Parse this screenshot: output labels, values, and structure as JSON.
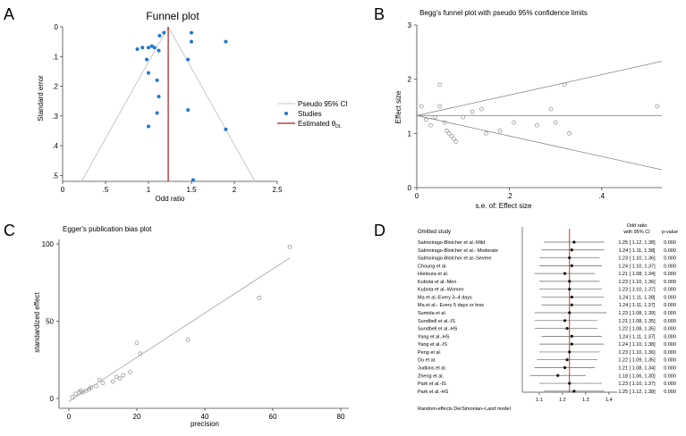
{
  "panelA": {
    "letter": "A",
    "chart_data": {
      "type": "scatter",
      "title": "Funnel plot",
      "xlabel": "Odd ratio",
      "ylabel": "Standard error",
      "xlim": [
        0,
        2.5
      ],
      "ylim": [
        0,
        0.52
      ],
      "y_inverted": true,
      "x_ticks": [
        "0",
        ".5",
        "1",
        "1.5",
        "2",
        "2.5"
      ],
      "y_ticks": [
        "0",
        ".1",
        ".2",
        ".3",
        ".4",
        ".5"
      ],
      "pooled_estimate": 1.23,
      "ci_lines": {
        "apex": [
          1.23,
          0
        ],
        "bottom_left": [
          0.22,
          0.52
        ],
        "bottom_right": [
          2.24,
          0.52
        ]
      },
      "legend": [
        "Pseudo 95% CI",
        "Studies",
        "Estimated θ"
      ],
      "legend_subscript": "DL",
      "points": [
        {
          "x": 1.18,
          "y": 0.02
        },
        {
          "x": 1.13,
          "y": 0.03
        },
        {
          "x": 1.5,
          "y": 0.02
        },
        {
          "x": 1.5,
          "y": 0.05
        },
        {
          "x": 1.9,
          "y": 0.05
        },
        {
          "x": 1.07,
          "y": 0.07
        },
        {
          "x": 0.87,
          "y": 0.075
        },
        {
          "x": 0.93,
          "y": 0.07
        },
        {
          "x": 1.0,
          "y": 0.07
        },
        {
          "x": 1.04,
          "y": 0.065
        },
        {
          "x": 1.12,
          "y": 0.08
        },
        {
          "x": 0.98,
          "y": 0.11
        },
        {
          "x": 1.46,
          "y": 0.11
        },
        {
          "x": 1.0,
          "y": 0.155
        },
        {
          "x": 1.1,
          "y": 0.18
        },
        {
          "x": 1.12,
          "y": 0.235
        },
        {
          "x": 1.46,
          "y": 0.28
        },
        {
          "x": 1.1,
          "y": 0.29
        },
        {
          "x": 1.0,
          "y": 0.335
        },
        {
          "x": 1.9,
          "y": 0.345
        },
        {
          "x": 1.52,
          "y": 0.515
        }
      ]
    }
  },
  "panelB": {
    "letter": "B",
    "chart_data": {
      "type": "scatter",
      "title": "Begg's funnel plot with pseudo 95% confidence limits",
      "xlabel": "s.e. of: Effect size",
      "ylabel": "Effect size",
      "xlim": [
        0,
        0.53
      ],
      "ylim": [
        0,
        3
      ],
      "x_ticks": [
        "0",
        ".2",
        ".4"
      ],
      "y_ticks": [
        "0",
        "1",
        "2",
        "3"
      ],
      "center": 1.33,
      "limit_lines": {
        "upper_end": [
          0.53,
          2.33
        ],
        "lower_end": [
          0.53,
          0.33
        ]
      },
      "points": [
        {
          "x": 0.01,
          "y": 1.5
        },
        {
          "x": 0.02,
          "y": 1.25
        },
        {
          "x": 0.03,
          "y": 1.15
        },
        {
          "x": 0.04,
          "y": 1.3
        },
        {
          "x": 0.05,
          "y": 1.5
        },
        {
          "x": 0.05,
          "y": 1.9
        },
        {
          "x": 0.06,
          "y": 1.2
        },
        {
          "x": 0.065,
          "y": 1.05
        },
        {
          "x": 0.07,
          "y": 1.0
        },
        {
          "x": 0.075,
          "y": 0.95
        },
        {
          "x": 0.08,
          "y": 0.9
        },
        {
          "x": 0.085,
          "y": 0.85
        },
        {
          "x": 0.1,
          "y": 1.3
        },
        {
          "x": 0.12,
          "y": 1.4
        },
        {
          "x": 0.14,
          "y": 1.45
        },
        {
          "x": 0.15,
          "y": 1.0
        },
        {
          "x": 0.18,
          "y": 1.05
        },
        {
          "x": 0.21,
          "y": 1.2
        },
        {
          "x": 0.26,
          "y": 1.15
        },
        {
          "x": 0.29,
          "y": 1.45
        },
        {
          "x": 0.3,
          "y": 1.2
        },
        {
          "x": 0.32,
          "y": 1.9
        },
        {
          "x": 0.33,
          "y": 1.0
        },
        {
          "x": 0.52,
          "y": 1.5
        }
      ]
    }
  },
  "panelC": {
    "letter": "C",
    "chart_data": {
      "type": "scatter",
      "title": "Egger's publication bias plot",
      "xlabel": "precision",
      "ylabel": "standardized effect",
      "xlim": [
        0,
        80
      ],
      "ylim": [
        0,
        100
      ],
      "x_ticks": [
        "0",
        "20",
        "40",
        "60",
        "80"
      ],
      "y_ticks": [
        "0",
        "50",
        "100"
      ],
      "fit_line": {
        "start": [
          0,
          -2
        ],
        "end": [
          65,
          91
        ]
      },
      "points": [
        {
          "x": 1,
          "y": 1
        },
        {
          "x": 2,
          "y": 3
        },
        {
          "x": 3,
          "y": 4
        },
        {
          "x": 3.5,
          "y": 5
        },
        {
          "x": 4,
          "y": 4
        },
        {
          "x": 5,
          "y": 5
        },
        {
          "x": 6,
          "y": 6
        },
        {
          "x": 6.5,
          "y": 7
        },
        {
          "x": 8,
          "y": 8
        },
        {
          "x": 9,
          "y": 12
        },
        {
          "x": 10,
          "y": 10
        },
        {
          "x": 13,
          "y": 11
        },
        {
          "x": 14,
          "y": 14
        },
        {
          "x": 15,
          "y": 13
        },
        {
          "x": 16,
          "y": 15
        },
        {
          "x": 18,
          "y": 17
        },
        {
          "x": 20,
          "y": 36
        },
        {
          "x": 21,
          "y": 29
        },
        {
          "x": 35,
          "y": 38
        },
        {
          "x": 56,
          "y": 65
        },
        {
          "x": 65,
          "y": 98
        }
      ]
    }
  },
  "panelD": {
    "letter": "D",
    "chart_data": {
      "type": "forest",
      "header_study": "Omitted study",
      "header_or_line1": "Odd ratio",
      "header_or_line2": "with 95% CI",
      "header_p": "p-value",
      "footer": "Random-effects DerSimonian–Laird model",
      "xlim": [
        1.05,
        1.42
      ],
      "x_ticks": [
        "1.1",
        "1.2",
        "1.3",
        "1.4"
      ],
      "pooled": 1.23,
      "studies": [
        {
          "name": "Salmoirago-Blotcher et al.-Mild",
          "or": 1.25,
          "lo": 1.12,
          "hi": 1.38,
          "label": "1.25 [ 1.12,  1.38]",
          "p": "0.000"
        },
        {
          "name": "Salmoirago-Blotcher et al.- Moderate",
          "or": 1.24,
          "lo": 1.11,
          "hi": 1.38,
          "label": "1.24 [ 1.11,  1.38]",
          "p": "0.000"
        },
        {
          "name": "Salmoirago-Blotcher et al.-Severe",
          "or": 1.23,
          "lo": 1.1,
          "hi": 1.36,
          "label": "1.23 [ 1.10,  1.36]",
          "p": "0.000"
        },
        {
          "name": "Choung et al.",
          "or": 1.24,
          "lo": 1.1,
          "hi": 1.37,
          "label": "1.24 [ 1.10,  1.37]",
          "p": "0.000"
        },
        {
          "name": "Honkura et al.",
          "or": 1.21,
          "lo": 1.08,
          "hi": 1.34,
          "label": "1.21 [ 1.08,  1.34]",
          "p": "0.000"
        },
        {
          "name": "Kubota et al.-Men",
          "or": 1.23,
          "lo": 1.1,
          "hi": 1.36,
          "label": "1.23 [ 1.10,  1.36]",
          "p": "0.000"
        },
        {
          "name": "Kubota et al.-Women",
          "or": 1.23,
          "lo": 1.1,
          "hi": 1.37,
          "label": "1.23 [ 1.10,  1.37]",
          "p": "0.000"
        },
        {
          "name": "Ma et al.-Every 3–4 days",
          "or": 1.24,
          "lo": 1.11,
          "hi": 1.38,
          "label": "1.24 [ 1.11,  1.38]",
          "p": "0.000"
        },
        {
          "name": "Ma et al.- Every 5 days or less",
          "or": 1.24,
          "lo": 1.11,
          "hi": 1.37,
          "label": "1.24 [ 1.11,  1.37]",
          "p": "0.000"
        },
        {
          "name": "Sumida et al.",
          "or": 1.23,
          "lo": 1.08,
          "hi": 1.39,
          "label": "1.23 [ 1.08,  1.39]",
          "p": "0.000"
        },
        {
          "name": "Sundbell et al.-IS",
          "or": 1.21,
          "lo": 1.08,
          "hi": 1.35,
          "label": "1.21 [ 1.08,  1.35]",
          "p": "0.000"
        },
        {
          "name": "Sundbell et al.-HS",
          "or": 1.22,
          "lo": 1.08,
          "hi": 1.35,
          "label": "1.22 [ 1.08,  1.35]",
          "p": "0.000"
        },
        {
          "name": "Yang et al.-HS",
          "or": 1.24,
          "lo": 1.11,
          "hi": 1.37,
          "label": "1.24 [ 1.11,  1.37]",
          "p": "0.000"
        },
        {
          "name": "Yang et al.-IS",
          "or": 1.24,
          "lo": 1.1,
          "hi": 1.38,
          "label": "1.24 [ 1.10,  1.38]",
          "p": "0.000"
        },
        {
          "name": "Peng et al.",
          "or": 1.23,
          "lo": 1.1,
          "hi": 1.36,
          "label": "1.23 [ 1.10,  1.36]",
          "p": "0.000"
        },
        {
          "name": "Du et al.",
          "or": 1.22,
          "lo": 1.09,
          "hi": 1.35,
          "label": "1.22 [ 1.09,  1.35]",
          "p": "0.000"
        },
        {
          "name": "Judkins  et al.",
          "or": 1.21,
          "lo": 1.08,
          "hi": 1.34,
          "label": "1.21 [ 1.08,  1.34]",
          "p": "0.000"
        },
        {
          "name": "Zheng et al.",
          "or": 1.18,
          "lo": 1.06,
          "hi": 1.3,
          "label": "1.18 [ 1.06,  1.30]",
          "p": "0.000"
        },
        {
          "name": "Park  et al.-IS",
          "or": 1.23,
          "lo": 1.1,
          "hi": 1.37,
          "label": "1.23 [ 1.10,  1.37]",
          "p": "0.000"
        },
        {
          "name": "Park  et al.-HS",
          "or": 1.25,
          "lo": 1.12,
          "hi": 1.38,
          "label": "1.25 [ 1.12,  1.38]",
          "p": "0.000"
        }
      ]
    }
  }
}
